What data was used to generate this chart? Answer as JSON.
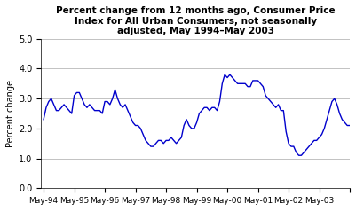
{
  "title": "Percent change from 12 months ago, Consumer Price\nIndex for All Urban Consumers, not seasonally\nadjusted, May 1994–May 2003",
  "ylabel": "Percent change",
  "line_color": "#0000CC",
  "background_color": "#ffffff",
  "ylim": [
    0.0,
    5.0
  ],
  "yticks": [
    0.0,
    1.0,
    2.0,
    3.0,
    4.0,
    5.0
  ],
  "xtick_labels": [
    "May-94",
    "May-95",
    "May-96",
    "May-97",
    "May-98",
    "May-99",
    "May-00",
    "May-01",
    "May-02",
    "May-03"
  ],
  "values": [
    2.3,
    2.7,
    2.9,
    3.0,
    2.8,
    2.6,
    2.6,
    2.7,
    2.8,
    2.7,
    2.6,
    2.5,
    3.1,
    3.2,
    3.2,
    3.0,
    2.8,
    2.7,
    2.8,
    2.7,
    2.6,
    2.6,
    2.6,
    2.5,
    2.9,
    2.9,
    2.8,
    3.0,
    3.3,
    3.0,
    2.8,
    2.7,
    2.8,
    2.6,
    2.4,
    2.2,
    2.1,
    2.1,
    2.0,
    1.8,
    1.6,
    1.5,
    1.4,
    1.4,
    1.5,
    1.6,
    1.6,
    1.5,
    1.6,
    1.6,
    1.7,
    1.6,
    1.5,
    1.6,
    1.7,
    2.1,
    2.3,
    2.1,
    2.0,
    2.0,
    2.2,
    2.5,
    2.6,
    2.7,
    2.7,
    2.6,
    2.7,
    2.7,
    2.6,
    2.9,
    3.5,
    3.8,
    3.7,
    3.8,
    3.7,
    3.6,
    3.5,
    3.5,
    3.5,
    3.5,
    3.4,
    3.4,
    3.6,
    3.6,
    3.6,
    3.5,
    3.4,
    3.1,
    3.0,
    2.9,
    2.8,
    2.7,
    2.8,
    2.6,
    2.6,
    1.9,
    1.5,
    1.4,
    1.4,
    1.2,
    1.1,
    1.1,
    1.2,
    1.3,
    1.4,
    1.5,
    1.6,
    1.6,
    1.7,
    1.8,
    2.0,
    2.3,
    2.6,
    2.9,
    3.0,
    2.8,
    2.5,
    2.3,
    2.2,
    2.1,
    2.1
  ]
}
